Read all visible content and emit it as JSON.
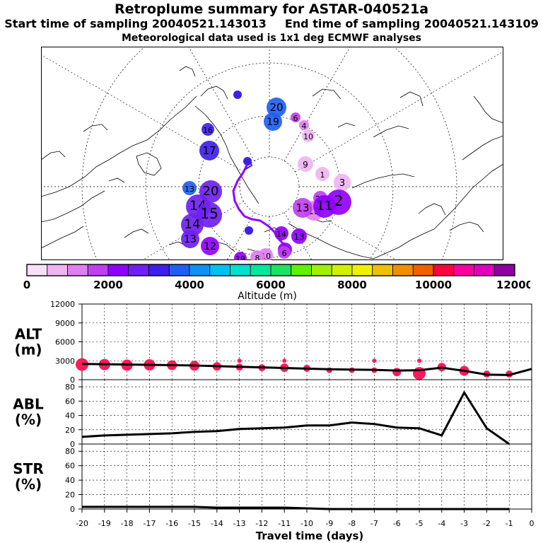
{
  "header": {
    "title": "Retroplume summary for ASTAR-040521a",
    "start_label": "Start time of sampling 20040521.143013",
    "end_label": "End time of sampling 20040521.143109",
    "met_label": "Meteorological data used is 1x1 deg ECMWF analyses"
  },
  "colors": {
    "altitude_scale": [
      "#f7e0f7",
      "#f0b4f0",
      "#e07ff0",
      "#c040f0",
      "#9000ff",
      "#7020f0",
      "#4020e8",
      "#2060f0",
      "#1090f0",
      "#00c0f0",
      "#00e0d0",
      "#00e8a0",
      "#20e060",
      "#60f000",
      "#a0f000",
      "#d0f000",
      "#f0f000",
      "#f0c000",
      "#f09000",
      "#f06000",
      "#ff0040",
      "#ff00a0",
      "#e000c0",
      "#9000a0"
    ],
    "dot_color": "#ff1a5c",
    "line_color": "#000000"
  },
  "map": {
    "plume_labels": [
      {
        "label": "20",
        "color": "#2060f0",
        "r": 14
      },
      {
        "label": "19",
        "color": "#2060f0",
        "r": 13
      },
      {
        "label": "6",
        "color": "#c040f0",
        "r": 7
      },
      {
        "label": "4",
        "color": "#e07ff0",
        "r": 7
      },
      {
        "label": "10",
        "color": "#f0b4f0",
        "r": 9
      },
      {
        "label": "16",
        "color": "#4020e8",
        "r": 9
      },
      {
        "label": "17",
        "color": "#4020e8",
        "r": 14
      },
      {
        "label": "9",
        "color": "#f0b4f0",
        "r": 11
      },
      {
        "label": "1",
        "color": "#f0b4f0",
        "r": 10
      },
      {
        "label": "3",
        "color": "#f0b4f0",
        "r": 12
      },
      {
        "label": "13",
        "color": "#2060f0",
        "r": 10
      },
      {
        "label": "20",
        "color": "#7020f0",
        "r": 16
      },
      {
        "label": "14",
        "color": "#7020f0",
        "r": 17
      },
      {
        "label": "15",
        "color": "#7020f0",
        "r": 18
      },
      {
        "label": "14",
        "color": "#7020f0",
        "r": 16
      },
      {
        "label": "13",
        "color": "#7020f0",
        "r": 13
      },
      {
        "label": "12",
        "color": "#9000ff",
        "r": 13
      },
      {
        "label": "20",
        "color": "#c040f0",
        "r": 10
      },
      {
        "label": "15",
        "color": "#e07ff0",
        "r": 14
      },
      {
        "label": "13",
        "color": "#c040f0",
        "r": 14
      },
      {
        "label": "2",
        "color": "#9000ff",
        "r": 18
      },
      {
        "label": "11",
        "color": "#9000ff",
        "r": 16
      },
      {
        "label": "13",
        "color": "#9000ff",
        "r": 11
      },
      {
        "label": "14",
        "color": "#9000ff",
        "r": 10
      },
      {
        "label": "5",
        "color": "#9000ff",
        "r": 10
      },
      {
        "label": "6",
        "color": "#c040f0",
        "r": 9
      },
      {
        "label": "10",
        "color": "#e07ff0",
        "r": 10
      },
      {
        "label": "8",
        "color": "#e07ff0",
        "r": 10
      },
      {
        "label": "19",
        "color": "#9000ff",
        "r": 9
      }
    ]
  },
  "colorbar": {
    "ticks": [
      "0",
      "2000",
      "4000",
      "6000",
      "8000",
      "10000",
      "12000"
    ],
    "label": "Altitude (m)"
  },
  "chart_data": [
    {
      "type": "line",
      "panel": "ALT",
      "ylabel_1": "ALT",
      "ylabel_2": "(m)",
      "ylim": [
        0,
        12000
      ],
      "yticks": [
        "0",
        "3000",
        "6000",
        "9000",
        "12000"
      ],
      "x": [
        -20,
        -19,
        -18,
        -17,
        -16,
        -15,
        -14,
        -13,
        -12,
        -11,
        -10,
        -9,
        -8,
        -7,
        -6,
        -5,
        -4,
        -3,
        -2,
        -1,
        0
      ],
      "values": [
        2500,
        2450,
        2400,
        2350,
        2300,
        2250,
        2150,
        2050,
        1950,
        1850,
        1750,
        1650,
        1600,
        1550,
        1450,
        1500,
        1900,
        1400,
        800,
        750,
        1700
      ],
      "dots": [
        {
          "x": -20,
          "y": 2400,
          "s": 9
        },
        {
          "x": -19,
          "y": 2400,
          "s": 8
        },
        {
          "x": -18,
          "y": 2300,
          "s": 8
        },
        {
          "x": -17,
          "y": 2350,
          "s": 8
        },
        {
          "x": -16,
          "y": 2300,
          "s": 7
        },
        {
          "x": -15,
          "y": 2200,
          "s": 7
        },
        {
          "x": -14,
          "y": 2100,
          "s": 6
        },
        {
          "x": -13,
          "y": 2000,
          "s": 5
        },
        {
          "x": -12,
          "y": 1900,
          "s": 5
        },
        {
          "x": -11,
          "y": 1900,
          "s": 6
        },
        {
          "x": -10,
          "y": 1800,
          "s": 5
        },
        {
          "x": -9,
          "y": 1500,
          "s": 4
        },
        {
          "x": -8,
          "y": 1500,
          "s": 4
        },
        {
          "x": -7,
          "y": 1500,
          "s": 4
        },
        {
          "x": -6,
          "y": 1200,
          "s": 6
        },
        {
          "x": -5,
          "y": 1000,
          "s": 9
        },
        {
          "x": -4,
          "y": 2000,
          "s": 6
        },
        {
          "x": -3,
          "y": 1400,
          "s": 7
        },
        {
          "x": -2,
          "y": 900,
          "s": 5
        },
        {
          "x": -1,
          "y": 900,
          "s": 5
        },
        {
          "x": -5,
          "y": 3000,
          "s": 3
        },
        {
          "x": -7,
          "y": 3000,
          "s": 3
        },
        {
          "x": -13,
          "y": 3000,
          "s": 3
        },
        {
          "x": -11,
          "y": 3000,
          "s": 3
        }
      ]
    },
    {
      "type": "line",
      "panel": "ABL",
      "ylabel_1": "ABL",
      "ylabel_2": "(%)",
      "ylim": [
        0,
        90
      ],
      "yticks": [
        "0",
        "20",
        "40",
        "60",
        "80"
      ],
      "x": [
        -20,
        -19,
        -18,
        -17,
        -16,
        -15,
        -14,
        -13,
        -12,
        -11,
        -10,
        -9,
        -8,
        -7,
        -6,
        -5,
        -4,
        -3,
        -2,
        -1
      ],
      "values": [
        10,
        12,
        13,
        14,
        15,
        17,
        18,
        21,
        22,
        23,
        26,
        26,
        30,
        28,
        23,
        22,
        12,
        72,
        22,
        0
      ]
    },
    {
      "type": "line",
      "panel": "STR",
      "ylabel_1": "STR",
      "ylabel_2": "(%)",
      "ylim": [
        0,
        90
      ],
      "yticks": [
        "0",
        "20",
        "40",
        "60",
        "80"
      ],
      "x": [
        -20,
        -19,
        -18,
        -17,
        -16,
        -15,
        -14,
        -13,
        -12,
        -11,
        -10,
        -9,
        -8,
        -7,
        -6,
        -5,
        -4,
        -3,
        -2,
        -1
      ],
      "values": [
        3,
        3,
        3,
        3,
        3,
        3,
        2,
        2,
        2,
        2,
        1,
        0,
        0,
        0,
        0,
        0,
        0,
        0,
        0,
        0
      ]
    }
  ],
  "x_axis": {
    "ticks": [
      "-20",
      "-19",
      "-18",
      "-17",
      "-16",
      "-15",
      "-14",
      "-13",
      "-12",
      "-11",
      "-10",
      "-9",
      "-8",
      "-7",
      "-6",
      "-5",
      "-4",
      "-3",
      "-2",
      "-1",
      "0"
    ],
    "label": "Travel time (days)"
  }
}
